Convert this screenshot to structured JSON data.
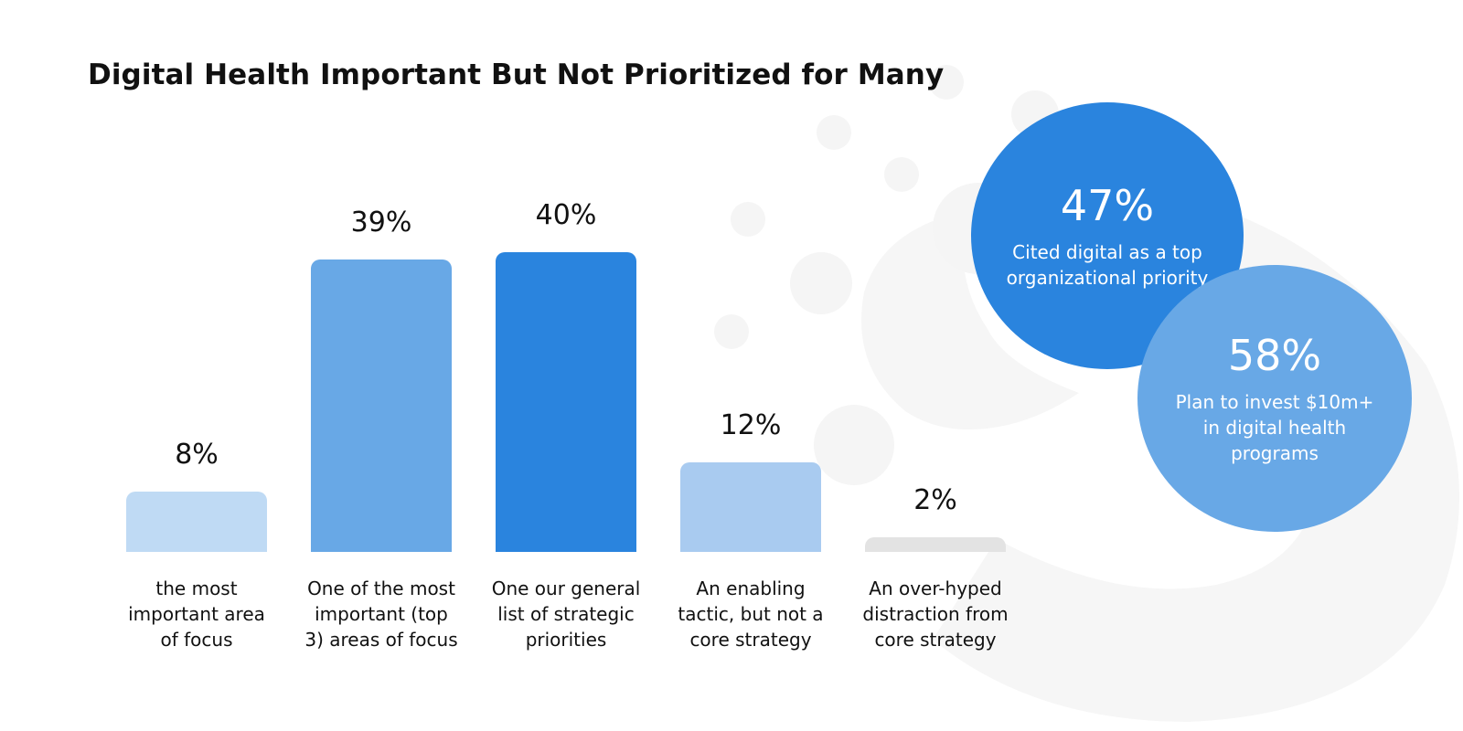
{
  "title": "Digital Health Important But Not Prioritized for Many",
  "colors": {
    "bar_1": "#bfdaf4",
    "bar_2": "#68a8e6",
    "bar_3": "#2a84de",
    "bar_4": "#a9cbf0",
    "bar_5": "#e3e3e3",
    "circle_primary": "#2a84de",
    "circle_secondary": "#68a8e6",
    "background_decor": "#f5f5f5"
  },
  "chart_data": {
    "type": "bar",
    "categories": [
      "the most important area of focus",
      "One of the most important (top 3) areas of focus",
      "One our general list of strategic priorities",
      "An enabling tactic, but not a core strategy",
      "An over-hyped distraction from core strategy"
    ],
    "values": [
      8,
      39,
      40,
      12,
      2
    ],
    "value_labels": [
      "8%",
      "39%",
      "40%",
      "12%",
      "2%"
    ],
    "ylim": [
      0,
      40
    ],
    "grid": false,
    "legend": "none"
  },
  "callouts": [
    {
      "value": "47%",
      "text": "Cited digital as a top organizational priority"
    },
    {
      "value": "58%",
      "text": "Plan to invest $10m+ in digital health programs"
    }
  ]
}
